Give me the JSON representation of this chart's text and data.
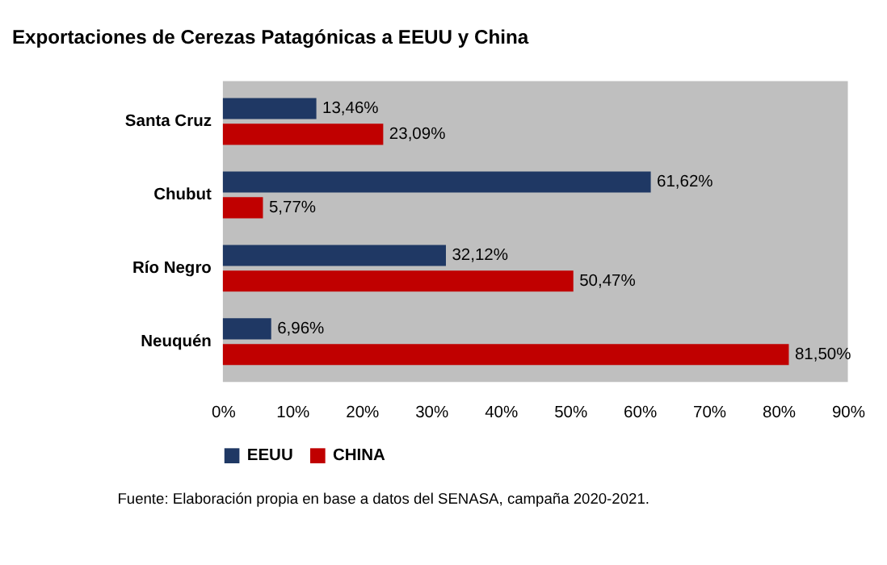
{
  "chart_data": {
    "type": "bar",
    "orientation": "horizontal",
    "title": "Exportaciones de Cerezas Patagónicas a EEUU y China",
    "categories": [
      "Santa Cruz",
      "Chubut",
      "Río Negro",
      "Neuquén"
    ],
    "series": [
      {
        "name": "EEUU",
        "color": "#1f3864",
        "values": [
          13.46,
          61.62,
          32.12,
          6.96
        ],
        "value_labels": [
          "13,46%",
          "61,62%",
          "32,12%",
          "6,96%"
        ]
      },
      {
        "name": "CHINA",
        "color": "#c00000",
        "values": [
          23.09,
          5.77,
          50.47,
          81.5
        ],
        "value_labels": [
          "23,09%",
          "5,77%",
          "50,47%",
          "81,50%"
        ]
      }
    ],
    "xlim": [
      0,
      90
    ],
    "xticks": [
      {
        "value": 0,
        "label": "0%"
      },
      {
        "value": 10,
        "label": "10%"
      },
      {
        "value": 20,
        "label": "20%"
      },
      {
        "value": 30,
        "label": "30%"
      },
      {
        "value": 40,
        "label": "40%"
      },
      {
        "value": 50,
        "label": "50%"
      },
      {
        "value": 60,
        "label": "60%"
      },
      {
        "value": 70,
        "label": "70%"
      },
      {
        "value": 80,
        "label": "80%"
      },
      {
        "value": 90,
        "label": "90%"
      }
    ],
    "grid": false,
    "legend": "bottom",
    "annotations": [
      "Fuente: Elaboración propia en base a datos del SENASA, campaña 2020-2021."
    ]
  }
}
